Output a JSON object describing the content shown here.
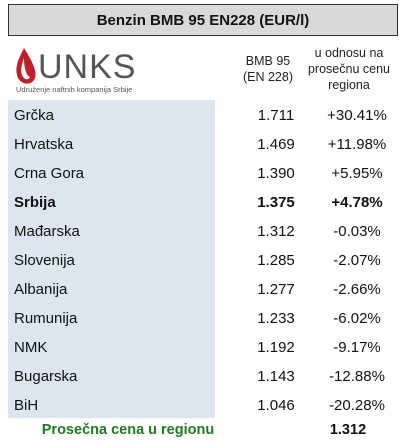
{
  "header": {
    "title": "Benzin BMB 95 EN228 (EUR/l)",
    "logo": {
      "name": "UNKS",
      "subtitle": "Udruženje naftnih kompanija Srbije"
    },
    "columns": [
      "BMB 95\n(EN 228)",
      "u odnosu na\nprosečnu cenu\nregiona"
    ]
  },
  "table": {
    "rows": [
      {
        "country": "Grčka",
        "price": "1.711",
        "change": "+30.41%"
      },
      {
        "country": "Hrvatska",
        "price": "1.469",
        "change": "+11.98%"
      },
      {
        "country": "Crna Gora",
        "price": "1.390",
        "change": "+5.95%"
      },
      {
        "country": "Srbija",
        "price": "1.375",
        "change": "+4.78%",
        "bold": true
      },
      {
        "country": "Mađarska",
        "price": "1.312",
        "change": "-0.03%"
      },
      {
        "country": "Slovenija",
        "price": "1.285",
        "change": "-2.07%"
      },
      {
        "country": "Albanija",
        "price": "1.277",
        "change": "-2.66%"
      },
      {
        "country": "Rumunija",
        "price": "1.233",
        "change": "-6.02%"
      },
      {
        "country": "NMK",
        "price": "1.192",
        "change": "-9.17%"
      },
      {
        "country": "Bugarska",
        "price": "1.143",
        "change": "-12.88%"
      },
      {
        "country": "BiH",
        "price": "1.046",
        "change": "-20.28%"
      }
    ]
  },
  "footer": {
    "label": "Prosečna cena u regionu",
    "value": "1.312"
  }
}
